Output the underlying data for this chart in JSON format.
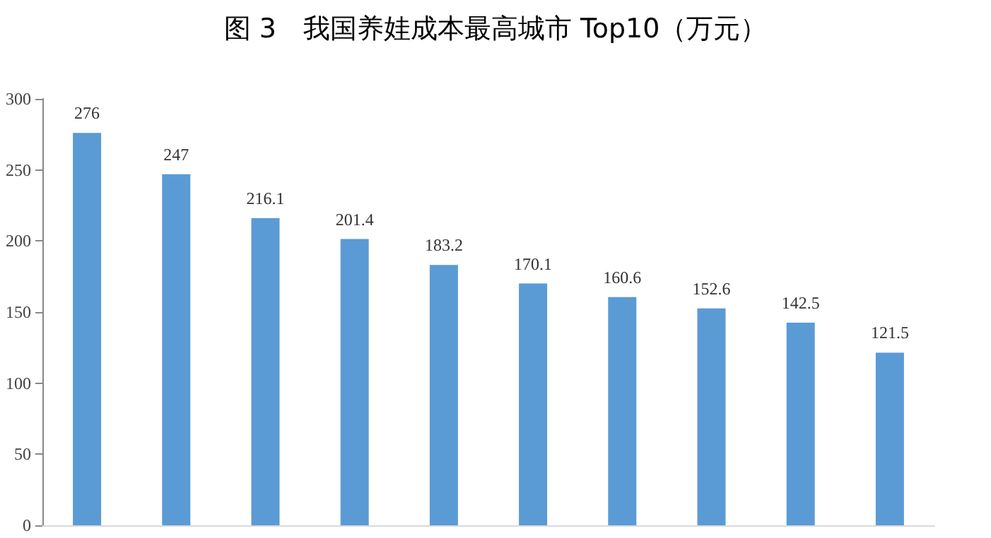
{
  "chart_data": {
    "type": "bar",
    "title": "图 3　我国养娃成本最高城市 Top10（万元）",
    "categories": [
      null,
      null,
      null,
      null,
      null,
      null,
      null,
      null,
      null,
      null
    ],
    "values": [
      276,
      247,
      216.1,
      201.4,
      183.2,
      170.1,
      160.6,
      152.6,
      142.5,
      121.5
    ],
    "color": "#5b9bd5",
    "data_labels": true,
    "ylim": [
      0,
      300
    ],
    "yticks": [
      0,
      50,
      100,
      150,
      200,
      250,
      300
    ],
    "grid": false
  }
}
